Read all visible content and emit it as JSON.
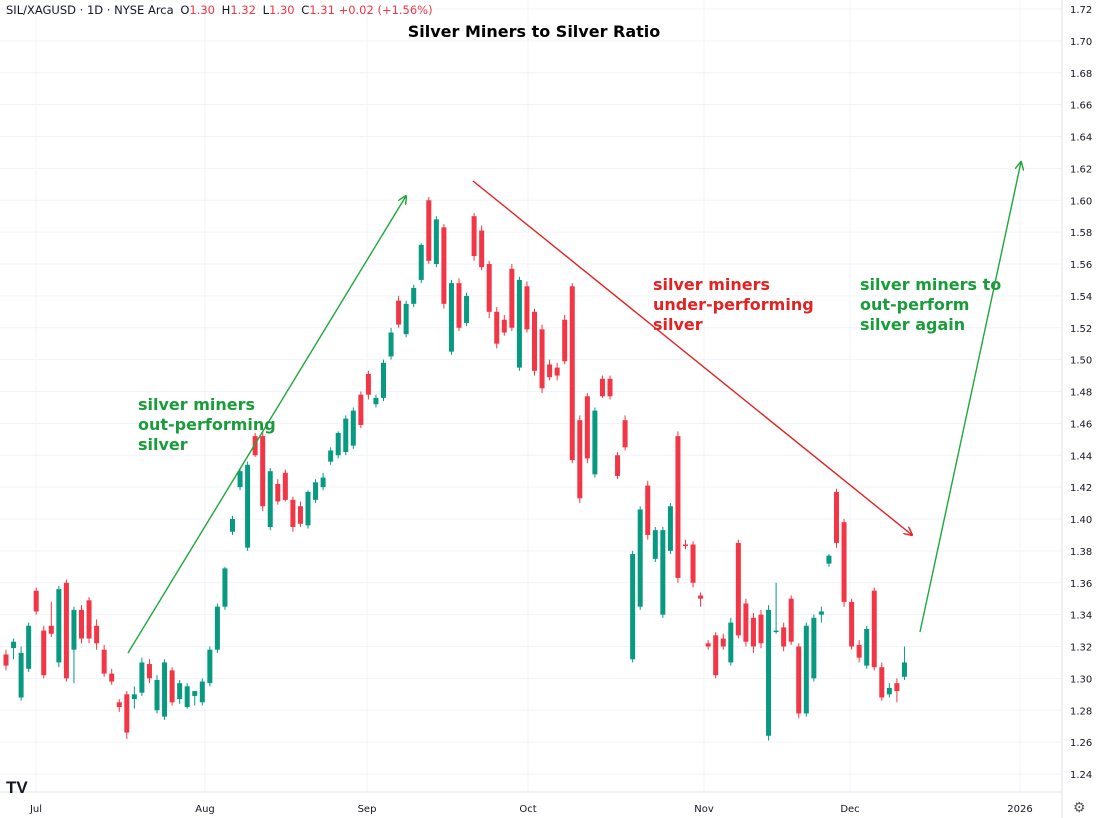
{
  "header": {
    "symbol": "SIL/XAGUSD · 1D · NYSE Arca",
    "o_label": "O",
    "o_value": "1.30",
    "h_label": "H",
    "h_value": "1.32",
    "l_label": "L",
    "l_value": "1.30",
    "c_label": "C",
    "c_value": "1.31",
    "change": "+0.02 (+1.56%)"
  },
  "logo_text": "TV",
  "settings_icon": "gear-icon",
  "colors": {
    "up": "#089981",
    "down": "#f23645",
    "green_text": "#1a9c3a",
    "red_text": "#e32222"
  },
  "chart_data": {
    "type": "candlestick",
    "title": "Silver Miners to Silver Ratio",
    "ylim": [
      1.23,
      1.725
    ],
    "y_ticks": [
      "1.24",
      "1.26",
      "1.28",
      "1.30",
      "1.32",
      "1.34",
      "1.36",
      "1.38",
      "1.40",
      "1.42",
      "1.44",
      "1.46",
      "1.48",
      "1.50",
      "1.52",
      "1.54",
      "1.56",
      "1.58",
      "1.60",
      "1.62",
      "1.64",
      "1.66",
      "1.68",
      "1.70",
      "1.72"
    ],
    "x_ticks": [
      "Jul",
      "Aug",
      "Sep",
      "Oct",
      "Nov",
      "Dec",
      "2026"
    ],
    "grid": true,
    "candles": [
      {
        "o": 1.315,
        "h": 1.318,
        "l": 1.305,
        "c": 1.308
      },
      {
        "o": 1.319,
        "h": 1.325,
        "l": 1.312,
        "c": 1.323
      },
      {
        "o": 1.288,
        "h": 1.32,
        "l": 1.286,
        "c": 1.316
      },
      {
        "o": 1.306,
        "h": 1.335,
        "l": 1.304,
        "c": 1.333
      },
      {
        "o": 1.355,
        "h": 1.357,
        "l": 1.34,
        "c": 1.342
      },
      {
        "o": 1.33,
        "h": 1.333,
        "l": 1.3,
        "c": 1.302
      },
      {
        "o": 1.333,
        "h": 1.348,
        "l": 1.326,
        "c": 1.328
      },
      {
        "o": 1.31,
        "h": 1.358,
        "l": 1.307,
        "c": 1.356
      },
      {
        "o": 1.36,
        "h": 1.362,
        "l": 1.298,
        "c": 1.3
      },
      {
        "o": 1.318,
        "h": 1.345,
        "l": 1.297,
        "c": 1.343
      },
      {
        "o": 1.343,
        "h": 1.346,
        "l": 1.322,
        "c": 1.325
      },
      {
        "o": 1.349,
        "h": 1.351,
        "l": 1.322,
        "c": 1.325
      },
      {
        "o": 1.333,
        "h": 1.337,
        "l": 1.318,
        "c": 1.322
      },
      {
        "o": 1.318,
        "h": 1.321,
        "l": 1.301,
        "c": 1.303
      },
      {
        "o": 1.303,
        "h": 1.306,
        "l": 1.296,
        "c": 1.298
      },
      {
        "o": 1.285,
        "h": 1.287,
        "l": 1.279,
        "c": 1.282
      },
      {
        "o": 1.29,
        "h": 1.292,
        "l": 1.262,
        "c": 1.266
      },
      {
        "o": 1.287,
        "h": 1.295,
        "l": 1.281,
        "c": 1.29
      },
      {
        "o": 1.291,
        "h": 1.313,
        "l": 1.289,
        "c": 1.31
      },
      {
        "o": 1.309,
        "h": 1.312,
        "l": 1.297,
        "c": 1.3
      },
      {
        "o": 1.28,
        "h": 1.302,
        "l": 1.278,
        "c": 1.299
      },
      {
        "o": 1.276,
        "h": 1.312,
        "l": 1.274,
        "c": 1.31
      },
      {
        "o": 1.305,
        "h": 1.307,
        "l": 1.283,
        "c": 1.285
      },
      {
        "o": 1.287,
        "h": 1.299,
        "l": 1.284,
        "c": 1.297
      },
      {
        "o": 1.282,
        "h": 1.297,
        "l": 1.281,
        "c": 1.295
      },
      {
        "o": 1.289,
        "h": 1.292,
        "l": 1.283,
        "c": 1.292
      },
      {
        "o": 1.285,
        "h": 1.3,
        "l": 1.283,
        "c": 1.298
      },
      {
        "o": 1.297,
        "h": 1.32,
        "l": 1.295,
        "c": 1.318
      },
      {
        "o": 1.318,
        "h": 1.347,
        "l": 1.316,
        "c": 1.345
      },
      {
        "o": 1.345,
        "h": 1.37,
        "l": 1.343,
        "c": 1.369
      },
      {
        "o": 1.392,
        "h": 1.402,
        "l": 1.39,
        "c": 1.4
      },
      {
        "o": 1.42,
        "h": 1.432,
        "l": 1.418,
        "c": 1.43
      },
      {
        "o": 1.382,
        "h": 1.436,
        "l": 1.38,
        "c": 1.434
      },
      {
        "o": 1.452,
        "h": 1.454,
        "l": 1.439,
        "c": 1.44
      },
      {
        "o": 1.452,
        "h": 1.455,
        "l": 1.405,
        "c": 1.408
      },
      {
        "o": 1.395,
        "h": 1.432,
        "l": 1.393,
        "c": 1.43
      },
      {
        "o": 1.422,
        "h": 1.425,
        "l": 1.409,
        "c": 1.411
      },
      {
        "o": 1.429,
        "h": 1.431,
        "l": 1.411,
        "c": 1.412
      },
      {
        "o": 1.412,
        "h": 1.414,
        "l": 1.392,
        "c": 1.395
      },
      {
        "o": 1.408,
        "h": 1.411,
        "l": 1.395,
        "c": 1.397
      },
      {
        "o": 1.396,
        "h": 1.418,
        "l": 1.394,
        "c": 1.417
      },
      {
        "o": 1.412,
        "h": 1.425,
        "l": 1.41,
        "c": 1.423
      },
      {
        "o": 1.42,
        "h": 1.429,
        "l": 1.418,
        "c": 1.426
      },
      {
        "o": 1.436,
        "h": 1.445,
        "l": 1.434,
        "c": 1.443
      },
      {
        "o": 1.44,
        "h": 1.455,
        "l": 1.438,
        "c": 1.454
      },
      {
        "o": 1.442,
        "h": 1.465,
        "l": 1.44,
        "c": 1.463
      },
      {
        "o": 1.446,
        "h": 1.47,
        "l": 1.444,
        "c": 1.468
      },
      {
        "o": 1.478,
        "h": 1.48,
        "l": 1.457,
        "c": 1.459
      },
      {
        "o": 1.491,
        "h": 1.493,
        "l": 1.475,
        "c": 1.478
      },
      {
        "o": 1.472,
        "h": 1.478,
        "l": 1.47,
        "c": 1.476
      },
      {
        "o": 1.476,
        "h": 1.5,
        "l": 1.474,
        "c": 1.498
      },
      {
        "o": 1.502,
        "h": 1.52,
        "l": 1.5,
        "c": 1.517
      },
      {
        "o": 1.537,
        "h": 1.54,
        "l": 1.52,
        "c": 1.522
      },
      {
        "o": 1.516,
        "h": 1.537,
        "l": 1.514,
        "c": 1.535
      },
      {
        "o": 1.535,
        "h": 1.547,
        "l": 1.533,
        "c": 1.545
      },
      {
        "o": 1.55,
        "h": 1.573,
        "l": 1.548,
        "c": 1.572
      },
      {
        "o": 1.6,
        "h": 1.602,
        "l": 1.56,
        "c": 1.562
      },
      {
        "o": 1.56,
        "h": 1.59,
        "l": 1.558,
        "c": 1.588
      },
      {
        "o": 1.583,
        "h": 1.585,
        "l": 1.532,
        "c": 1.535
      },
      {
        "o": 1.505,
        "h": 1.55,
        "l": 1.503,
        "c": 1.548
      },
      {
        "o": 1.548,
        "h": 1.551,
        "l": 1.518,
        "c": 1.52
      },
      {
        "o": 1.523,
        "h": 1.542,
        "l": 1.521,
        "c": 1.54
      },
      {
        "o": 1.59,
        "h": 1.592,
        "l": 1.562,
        "c": 1.565
      },
      {
        "o": 1.581,
        "h": 1.584,
        "l": 1.556,
        "c": 1.558
      },
      {
        "o": 1.56,
        "h": 1.562,
        "l": 1.526,
        "c": 1.53
      },
      {
        "o": 1.53,
        "h": 1.533,
        "l": 1.507,
        "c": 1.51
      },
      {
        "o": 1.525,
        "h": 1.528,
        "l": 1.515,
        "c": 1.517
      },
      {
        "o": 1.557,
        "h": 1.56,
        "l": 1.518,
        "c": 1.52
      },
      {
        "o": 1.495,
        "h": 1.552,
        "l": 1.493,
        "c": 1.55
      },
      {
        "o": 1.546,
        "h": 1.549,
        "l": 1.517,
        "c": 1.519
      },
      {
        "o": 1.53,
        "h": 1.532,
        "l": 1.49,
        "c": 1.493
      },
      {
        "o": 1.519,
        "h": 1.522,
        "l": 1.479,
        "c": 1.482
      },
      {
        "o": 1.497,
        "h": 1.5,
        "l": 1.487,
        "c": 1.489
      },
      {
        "o": 1.495,
        "h": 1.498,
        "l": 1.487,
        "c": 1.49
      },
      {
        "o": 1.525,
        "h": 1.528,
        "l": 1.497,
        "c": 1.499
      },
      {
        "o": 1.546,
        "h": 1.548,
        "l": 1.435,
        "c": 1.437
      },
      {
        "o": 1.462,
        "h": 1.465,
        "l": 1.41,
        "c": 1.413
      },
      {
        "o": 1.477,
        "h": 1.479,
        "l": 1.435,
        "c": 1.438
      },
      {
        "o": 1.428,
        "h": 1.47,
        "l": 1.426,
        "c": 1.468
      },
      {
        "o": 1.488,
        "h": 1.49,
        "l": 1.476,
        "c": 1.477
      },
      {
        "o": 1.488,
        "h": 1.49,
        "l": 1.475,
        "c": 1.477
      },
      {
        "o": 1.44,
        "h": 1.442,
        "l": 1.425,
        "c": 1.427
      },
      {
        "o": 1.462,
        "h": 1.465,
        "l": 1.443,
        "c": 1.445
      },
      {
        "o": 1.312,
        "h": 1.38,
        "l": 1.31,
        "c": 1.378
      },
      {
        "o": 1.345,
        "h": 1.408,
        "l": 1.343,
        "c": 1.406
      },
      {
        "o": 1.421,
        "h": 1.424,
        "l": 1.387,
        "c": 1.39
      },
      {
        "o": 1.375,
        "h": 1.395,
        "l": 1.373,
        "c": 1.393
      },
      {
        "o": 1.34,
        "h": 1.395,
        "l": 1.338,
        "c": 1.393
      },
      {
        "o": 1.38,
        "h": 1.41,
        "l": 1.378,
        "c": 1.408
      },
      {
        "o": 1.452,
        "h": 1.455,
        "l": 1.36,
        "c": 1.363
      },
      {
        "o": 1.384,
        "h": 1.387,
        "l": 1.381,
        "c": 1.383
      },
      {
        "o": 1.384,
        "h": 1.386,
        "l": 1.357,
        "c": 1.36
      },
      {
        "o": 1.352,
        "h": 1.354,
        "l": 1.345,
        "c": 1.35
      },
      {
        "o": 1.322,
        "h": 1.324,
        "l": 1.318,
        "c": 1.32
      },
      {
        "o": 1.327,
        "h": 1.329,
        "l": 1.3,
        "c": 1.302
      },
      {
        "o": 1.325,
        "h": 1.328,
        "l": 1.318,
        "c": 1.32
      },
      {
        "o": 1.31,
        "h": 1.338,
        "l": 1.308,
        "c": 1.335
      },
      {
        "o": 1.385,
        "h": 1.387,
        "l": 1.325,
        "c": 1.327
      },
      {
        "o": 1.347,
        "h": 1.35,
        "l": 1.32,
        "c": 1.323
      },
      {
        "o": 1.338,
        "h": 1.341,
        "l": 1.316,
        "c": 1.32
      },
      {
        "o": 1.34,
        "h": 1.343,
        "l": 1.319,
        "c": 1.322
      },
      {
        "o": 1.264,
        "h": 1.346,
        "l": 1.261,
        "c": 1.343
      },
      {
        "o": 1.33,
        "h": 1.36,
        "l": 1.328,
        "c": 1.33
      },
      {
        "o": 1.332,
        "h": 1.335,
        "l": 1.317,
        "c": 1.32
      },
      {
        "o": 1.35,
        "h": 1.352,
        "l": 1.321,
        "c": 1.323
      },
      {
        "o": 1.32,
        "h": 1.322,
        "l": 1.275,
        "c": 1.278
      },
      {
        "o": 1.278,
        "h": 1.335,
        "l": 1.276,
        "c": 1.333
      },
      {
        "o": 1.3,
        "h": 1.34,
        "l": 1.298,
        "c": 1.338
      },
      {
        "o": 1.34,
        "h": 1.345,
        "l": 1.335,
        "c": 1.342
      },
      {
        "o": 1.372,
        "h": 1.378,
        "l": 1.37,
        "c": 1.377
      },
      {
        "o": 1.417,
        "h": 1.419,
        "l": 1.382,
        "c": 1.385
      },
      {
        "o": 1.398,
        "h": 1.4,
        "l": 1.345,
        "c": 1.348
      },
      {
        "o": 1.348,
        "h": 1.35,
        "l": 1.318,
        "c": 1.32
      },
      {
        "o": 1.321,
        "h": 1.324,
        "l": 1.31,
        "c": 1.313
      },
      {
        "o": 1.308,
        "h": 1.333,
        "l": 1.306,
        "c": 1.331
      },
      {
        "o": 1.355,
        "h": 1.357,
        "l": 1.305,
        "c": 1.307
      },
      {
        "o": 1.307,
        "h": 1.31,
        "l": 1.286,
        "c": 1.288
      },
      {
        "o": 1.29,
        "h": 1.297,
        "l": 1.288,
        "c": 1.294
      },
      {
        "o": 1.297,
        "h": 1.3,
        "l": 1.285,
        "c": 1.292
      },
      {
        "o": 1.301,
        "h": 1.32,
        "l": 1.299,
        "c": 1.31
      }
    ],
    "annotations": [
      {
        "name": "annotation-miners-outperforming",
        "color": "green",
        "lines": [
          "silver miners",
          "out-performing",
          "silver"
        ]
      },
      {
        "name": "annotation-miners-underperforming",
        "color": "red",
        "lines": [
          "silver miners",
          "under-performing",
          "silver"
        ]
      },
      {
        "name": "annotation-miners-outperform-again",
        "color": "green",
        "lines": [
          "silver miners to",
          "out-perform",
          "silver again"
        ]
      }
    ]
  }
}
